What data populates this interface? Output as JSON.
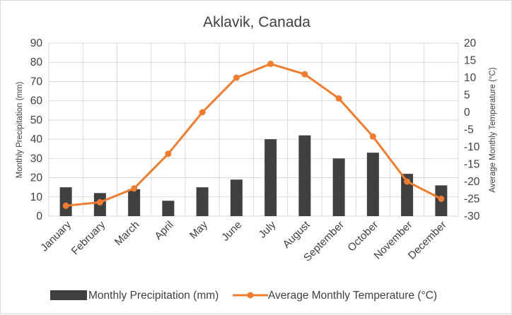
{
  "chart_data": {
    "type": "bar+line",
    "title": "Aklavik, Canada",
    "categories": [
      "January",
      "February",
      "March",
      "April",
      "May",
      "June",
      "July",
      "August",
      "September",
      "October",
      "November",
      "December"
    ],
    "series": [
      {
        "name": "Monthly Precipitation  (mm)",
        "type": "bar",
        "axis": "left",
        "color": "#404040",
        "values": [
          15,
          12,
          14,
          8,
          15,
          19,
          40,
          42,
          30,
          33,
          22,
          16
        ]
      },
      {
        "name": "Average Monthly  Temperature (°C)",
        "type": "line",
        "axis": "right",
        "color": "#ed7d31",
        "values": [
          -27,
          -26,
          -22,
          -12,
          0,
          10,
          14,
          11,
          4,
          -7,
          -20,
          -25
        ]
      }
    ],
    "ylabel_left": "Monthly Precipitation  (mm)",
    "ylabel_right": "Average Monthly  Temperature (°C)",
    "ylim_left": [
      0,
      90
    ],
    "ylim_right": [
      -30,
      20
    ],
    "yticks_left": [
      "0",
      "10",
      "20",
      "30",
      "40",
      "50",
      "60",
      "70",
      "80",
      "90"
    ],
    "yticks_right": [
      "-30",
      "-25",
      "-20",
      "-15",
      "-10",
      "-5",
      "0",
      "5",
      "10",
      "15",
      "20"
    ],
    "grid": true,
    "legend_position": "bottom"
  }
}
